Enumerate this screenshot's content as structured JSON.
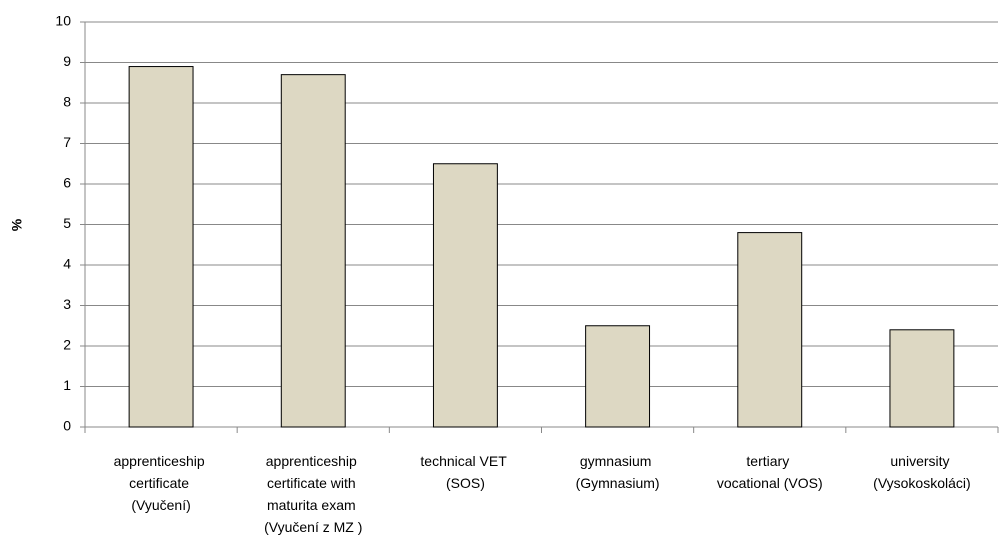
{
  "chart_data": {
    "type": "bar",
    "ylabel": "%",
    "categories": [
      "apprenticeship certificate (Vyučení)",
      "apprenticeship certificate with maturita exam (Vyučení z MZ )",
      "technical VET (SOS)",
      "gymnasium (Gymnasium)",
      "tertiary vocational (VOS)",
      "university (Vysokoskoláci)"
    ],
    "values": [
      8.9,
      8.7,
      6.5,
      2.5,
      4.8,
      2.4
    ],
    "color": "#ddd8c3",
    "ylim": [
      0,
      10
    ],
    "yticks": [
      0,
      1,
      2,
      3,
      4,
      5,
      6,
      7,
      8,
      9,
      10
    ],
    "grid": true
  }
}
